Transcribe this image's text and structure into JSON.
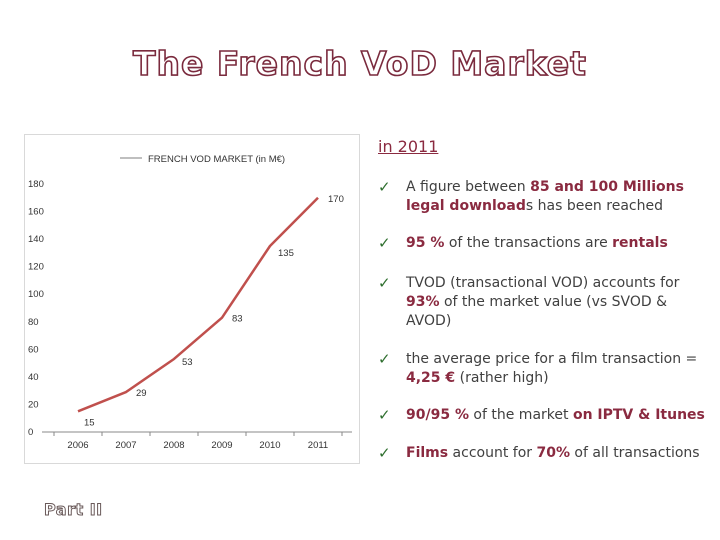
{
  "slide": {
    "title": "The French VoD Market",
    "footer": "Part II"
  },
  "chart_data": {
    "type": "line",
    "title": "",
    "legend": "FRENCH VOD MARKET (in M€)",
    "legend_placement": "top",
    "x": [
      "2006",
      "2007",
      "2008",
      "2009",
      "2010",
      "2011"
    ],
    "series": [
      {
        "name": "FRENCH VOD MARKET (in M€)",
        "values": [
          15,
          29,
          53,
          83,
          135,
          170
        ]
      }
    ],
    "data_labels": [
      "15",
      "29",
      "53",
      "83",
      "135",
      "170"
    ],
    "y_ticks": [
      "0",
      "20",
      "40",
      "60",
      "80",
      "100",
      "120",
      "140",
      "160",
      "180"
    ],
    "ylim": [
      0,
      180
    ],
    "grid": false,
    "line_color": "#c0504d"
  },
  "highlights": {
    "heading": "in 2011",
    "bullets": [
      [
        {
          "text": "A figure between ",
          "hl": false
        },
        {
          "text": "85 and 100 Millions legal download",
          "hl": true
        },
        {
          "text": "s has been reached",
          "hl": false
        }
      ],
      [
        {
          "text": "95 %",
          "hl": true
        },
        {
          "text": " of the transactions are ",
          "hl": false
        },
        {
          "text": "rentals",
          "hl": true
        }
      ],
      [
        {
          "text": "TVOD (transactional VOD) accounts for ",
          "hl": false
        },
        {
          "text": "93%",
          "hl": true
        },
        {
          "text": " of the market value (vs SVOD & AVOD)",
          "hl": false
        }
      ],
      [
        {
          "text": "the average price for a film transaction = ",
          "hl": false
        },
        {
          "text": "4,25 €",
          "hl": true
        },
        {
          "text": " (rather high)",
          "hl": false
        }
      ],
      [
        {
          "text": "90/95 %",
          "hl": true
        },
        {
          "text": " of the market ",
          "hl": false
        },
        {
          "text": "on IPTV & Itunes",
          "hl": true
        }
      ],
      [
        {
          "text": "Films",
          "hl": true
        },
        {
          "text": " account for ",
          "hl": false
        },
        {
          "text": "70%",
          "hl": true
        },
        {
          "text": " of all transactions",
          "hl": false
        }
      ]
    ]
  }
}
